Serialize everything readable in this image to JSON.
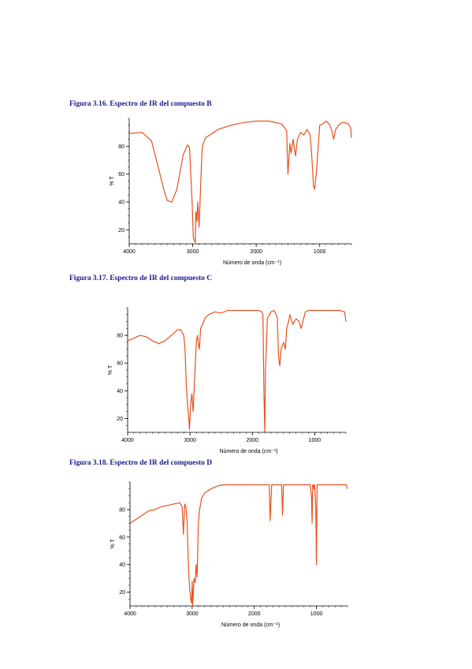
{
  "figures": [
    {
      "caption": "Figura 3.16. Espectro de IR del compuesto B"
    },
    {
      "caption": "Figura 3.17. Espectro de IR del compuesto C"
    },
    {
      "caption": "Figura 3.18. Espectro de IR del compuesto D"
    }
  ],
  "colors": {
    "trace": "#e8501e",
    "caption": "#1a1a8c",
    "axis": "#000000"
  },
  "chart_data": [
    {
      "type": "line",
      "title": "",
      "xlabel": "Número de onda (cm⁻¹)",
      "ylabel": "% T",
      "xlim": [
        4000,
        500
      ],
      "ylim": [
        10,
        100
      ],
      "xticks": [
        4000,
        3000,
        2000,
        1000
      ],
      "yticks": [
        20,
        40,
        60,
        80
      ],
      "grid": false,
      "series": [
        {
          "x": [
            4000,
            3800,
            3650,
            3550,
            3450,
            3400,
            3330,
            3250,
            3150,
            3080,
            3050,
            3010,
            2990,
            2960,
            2950,
            2935,
            2920,
            2900,
            2890,
            2860,
            2850,
            2800,
            2700,
            2600,
            2400,
            2200,
            2000,
            1800,
            1600,
            1520,
            1500,
            1470,
            1450,
            1420,
            1380,
            1350,
            1300,
            1250,
            1200,
            1150,
            1120,
            1100,
            1080,
            1050,
            1000,
            950,
            900,
            850,
            800,
            780,
            750,
            700,
            650,
            600,
            550,
            510,
            500
          ],
          "y": [
            89,
            90,
            84,
            66,
            48,
            41,
            40,
            49,
            74,
            81,
            79,
            40,
            14,
            11,
            33,
            26,
            40,
            22,
            33,
            70,
            80,
            86,
            89,
            92,
            95,
            97,
            98,
            98,
            96,
            91,
            60,
            82,
            75,
            85,
            73,
            85,
            90,
            88,
            92,
            88,
            70,
            52,
            49,
            62,
            95,
            96,
            98,
            96,
            90,
            85,
            92,
            95,
            97,
            97,
            96,
            93,
            86
          ]
        }
      ]
    },
    {
      "type": "line",
      "title": "",
      "xlabel": "Número de onda (cm⁻¹)",
      "ylabel": "% T",
      "xlim": [
        4000,
        500
      ],
      "ylim": [
        10,
        100
      ],
      "xticks": [
        4000,
        3000,
        2000,
        1000
      ],
      "yticks": [
        20,
        40,
        60,
        80
      ],
      "grid": false,
      "series": [
        {
          "x": [
            4000,
            3900,
            3800,
            3700,
            3600,
            3500,
            3400,
            3300,
            3200,
            3150,
            3100,
            3080,
            3060,
            3040,
            3020,
            3010,
            2990,
            2970,
            2950,
            2930,
            2900,
            2880,
            2860,
            2850,
            2830,
            2800,
            2750,
            2700,
            2600,
            2500,
            2400,
            2300,
            2200,
            2000,
            1900,
            1850,
            1830,
            1815,
            1800,
            1790,
            1760,
            1700,
            1650,
            1600,
            1580,
            1560,
            1540,
            1500,
            1470,
            1450,
            1420,
            1400,
            1350,
            1300,
            1250,
            1220,
            1200,
            1180,
            1150,
            1100,
            1050,
            1000,
            900,
            800,
            700,
            600,
            520,
            500
          ],
          "y": [
            76,
            78,
            80,
            79,
            76,
            74,
            76,
            80,
            84,
            84,
            80,
            70,
            45,
            30,
            20,
            12,
            30,
            38,
            25,
            45,
            75,
            80,
            72,
            70,
            85,
            88,
            93,
            95,
            97,
            96,
            98,
            98,
            98,
            98,
            98,
            97,
            95,
            40,
            10,
            55,
            92,
            97,
            98,
            93,
            65,
            58,
            70,
            75,
            70,
            85,
            90,
            95,
            88,
            92,
            90,
            85,
            88,
            92,
            97,
            98,
            98,
            98,
            98,
            98,
            98,
            98,
            97,
            90
          ]
        }
      ]
    },
    {
      "type": "line",
      "title": "",
      "xlabel": "Número de onda (cm⁻¹)",
      "ylabel": "% T",
      "xlim": [
        4000,
        500
      ],
      "ylim": [
        10,
        100
      ],
      "xticks": [
        4000,
        3000,
        2000,
        1000
      ],
      "yticks": [
        20,
        40,
        60,
        80
      ],
      "grid": false,
      "series": [
        {
          "x": [
            4000,
            3900,
            3800,
            3700,
            3600,
            3500,
            3400,
            3300,
            3200,
            3160,
            3140,
            3120,
            3100,
            3080,
            3060,
            3040,
            3020,
            3010,
            3000,
            2990,
            2970,
            2950,
            2935,
            2920,
            2900,
            2880,
            2860,
            2850,
            2800,
            2700,
            2600,
            2500,
            2400,
            2000,
            1800,
            1760,
            1745,
            1720,
            1700,
            1600,
            1560,
            1545,
            1530,
            1500,
            1400,
            1200,
            1100,
            1080,
            1070,
            1060,
            1050,
            1040,
            1030,
            1020,
            1010,
            1000,
            990,
            980,
            950,
            800,
            600,
            520,
            500
          ],
          "y": [
            70,
            73,
            76,
            79,
            80,
            82,
            83,
            84,
            85,
            82,
            62,
            84,
            82,
            70,
            40,
            22,
            14,
            12,
            28,
            10,
            30,
            27,
            40,
            31,
            70,
            80,
            85,
            88,
            92,
            95,
            97,
            98,
            98,
            98,
            98,
            98,
            72,
            98,
            98,
            98,
            98,
            76,
            98,
            98,
            98,
            98,
            98,
            90,
            70,
            98,
            98,
            95,
            98,
            90,
            80,
            40,
            98,
            98,
            98,
            98,
            98,
            98,
            95
          ]
        }
      ]
    }
  ]
}
